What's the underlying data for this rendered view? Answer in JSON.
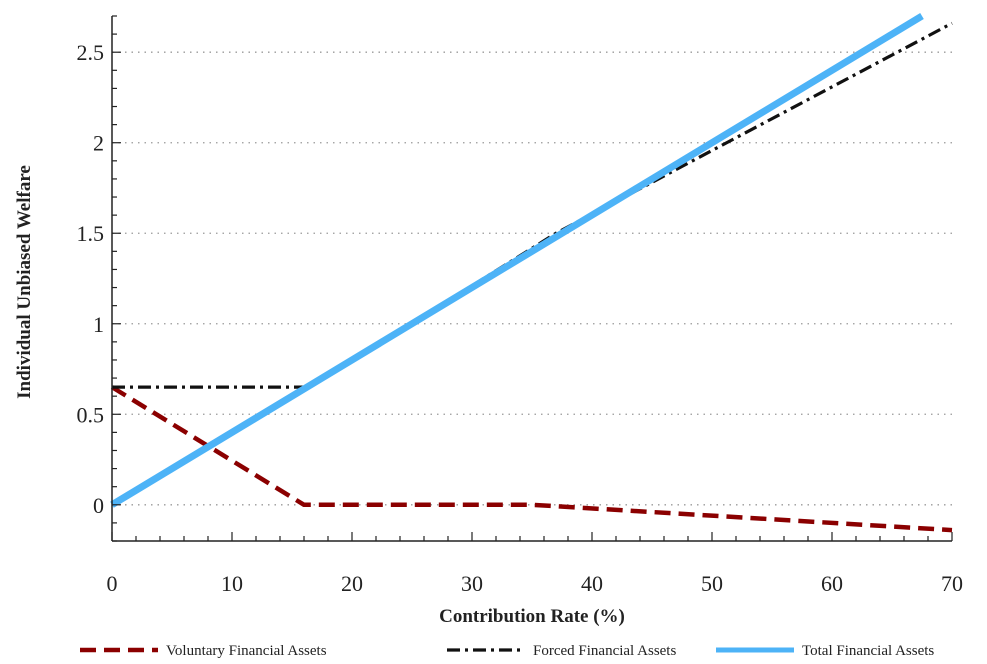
{
  "chart_data": {
    "type": "line",
    "title": "",
    "xlabel": "Contribution Rate (%)",
    "ylabel": "Individual Unbiased Welfare",
    "xlim": [
      0,
      70
    ],
    "ylim": [
      -0.2,
      2.7
    ],
    "xticks": [
      0,
      10,
      20,
      30,
      40,
      50,
      60,
      70
    ],
    "xtick_labels": [
      "0",
      "10",
      "20",
      "30",
      "40",
      "50",
      "60",
      "70"
    ],
    "yticks": [
      0,
      0.5,
      1,
      1.5,
      2,
      2.5
    ],
    "ytick_labels": [
      "0",
      "0.5",
      "1",
      "1.5",
      "2",
      "2.5"
    ],
    "grid": "horizontal dotted",
    "legend_position": "bottom",
    "series": [
      {
        "name": "Voluntary Financial Assets",
        "color": "#8b0000",
        "style": "dashed",
        "x": [
          0,
          16,
          35,
          70
        ],
        "y": [
          0.65,
          0.0,
          0.0,
          -0.14
        ]
      },
      {
        "name": "Forced Financial Assets",
        "color": "#111111",
        "style": "dash-dot",
        "x": [
          0,
          16.5,
          37,
          70
        ],
        "y": [
          0.65,
          0.65,
          1.5,
          2.66
        ]
      },
      {
        "name": "Total Financial Assets",
        "color": "#4db3f7",
        "style": "solid",
        "x": [
          0,
          67.5
        ],
        "y": [
          0.0,
          2.7
        ]
      }
    ]
  }
}
